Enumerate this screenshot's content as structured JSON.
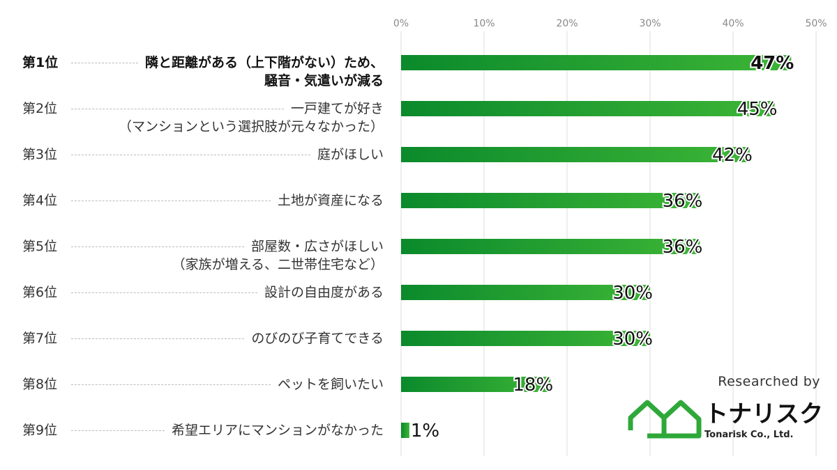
{
  "chart_data": {
    "type": "bar",
    "orientation": "horizontal",
    "xlim": [
      0,
      50
    ],
    "x_ticks": [
      "0%",
      "10%",
      "20%",
      "30%",
      "40%",
      "50%"
    ],
    "grid": true,
    "ranks": [
      "第1位",
      "第2位",
      "第3位",
      "第4位",
      "第5位",
      "第6位",
      "第7位",
      "第8位",
      "第9位"
    ],
    "categories": [
      [
        "隣と距離がある（上下階がない）ため、",
        "騒音・気遣いが減る"
      ],
      [
        "一戸建てが好き",
        "（マンションという選択肢が元々なかった）"
      ],
      [
        "庭がほしい"
      ],
      [
        "土地が資産になる"
      ],
      [
        "部屋数・広さがほしい",
        "（家族が増える、二世帯住宅など）"
      ],
      [
        "設計の自由度がある"
      ],
      [
        "のびのび子育てできる"
      ],
      [
        "ペットを飼いたい"
      ],
      [
        "希望エリアにマンションがなかった"
      ]
    ],
    "values": [
      47,
      45,
      42,
      36,
      36,
      30,
      30,
      18,
      1
    ],
    "data_labels": [
      "47%",
      "45%",
      "42%",
      "36%",
      "36%",
      "30%",
      "30%",
      "18%",
      "1%"
    ],
    "colors": {
      "bar_start": "#0b8a2c",
      "bar_end": "#3db536",
      "grid": "#dddddd"
    }
  },
  "credit": {
    "researched_by": "Researched by",
    "logo_text": "トナリスク",
    "logo_subtext": "Tonarisk Co., Ltd.",
    "logo_color": "#2fa83a"
  }
}
